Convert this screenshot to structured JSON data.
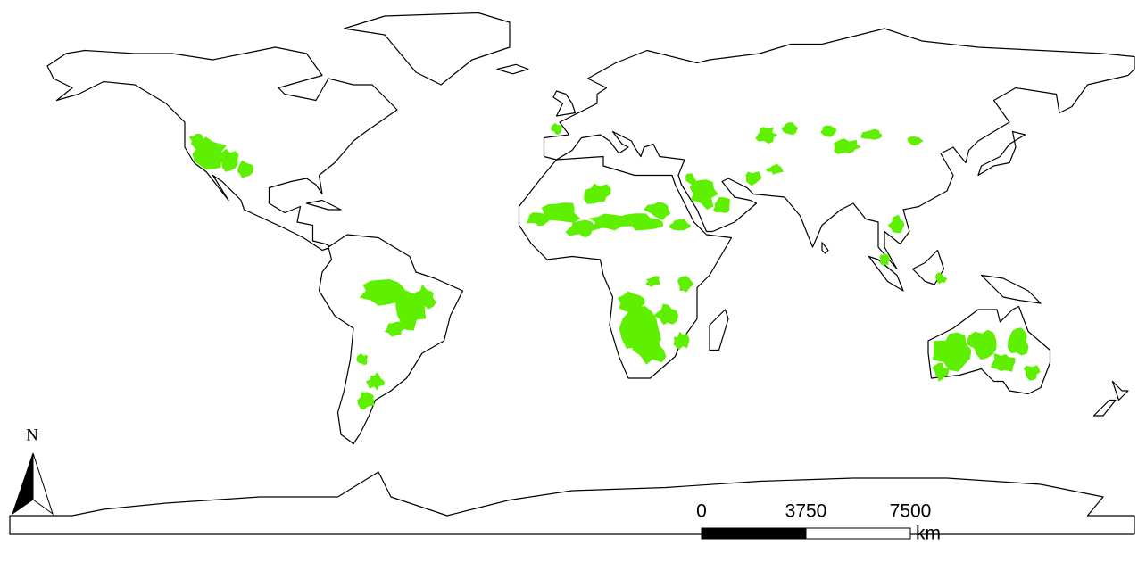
{
  "north_arrow": {
    "label": "N"
  },
  "scale_bar": {
    "ticks": [
      0,
      3750,
      7500
    ],
    "unit": "km"
  }
}
